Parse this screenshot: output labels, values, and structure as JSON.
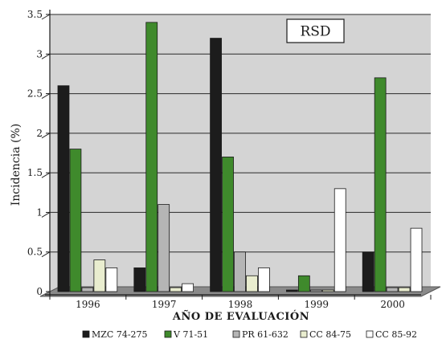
{
  "chart_data": {
    "type": "bar",
    "annotation": "RSD",
    "ylabel": "Incidencia (%)",
    "xlabel": "AÑO DE EVALUACIÓN",
    "ylim": [
      0,
      3.5
    ],
    "ytick_values": [
      0,
      0.5,
      1,
      1.5,
      2,
      2.5,
      3,
      3.5
    ],
    "ytick_labels": [
      "0",
      "0.5",
      "1",
      "1.5",
      "2",
      "2.5",
      "3",
      "3.5"
    ],
    "categories": [
      "1996",
      "1997",
      "1998",
      "1999",
      "2000"
    ],
    "grid": true,
    "legend_position": "bottom",
    "series": [
      {
        "name": "MZC 74-275",
        "color": "#1c1c1c",
        "values": [
          2.6,
          0.3,
          3.2,
          0.02,
          0.5
        ]
      },
      {
        "name": "V 71-51",
        "color": "#3f8a2c",
        "values": [
          1.8,
          3.4,
          1.7,
          0.2,
          2.7
        ]
      },
      {
        "name": "PR 61-632",
        "color": "#b5b5b5",
        "values": [
          0.05,
          1.1,
          0.5,
          0.02,
          0.05
        ]
      },
      {
        "name": "CC 84-75",
        "color": "#e9edcf",
        "values": [
          0.4,
          0.05,
          0.2,
          0.02,
          0.05
        ]
      },
      {
        "name": "CC 85-92",
        "color": "#ffffff",
        "values": [
          0.3,
          0.1,
          0.3,
          1.3,
          0.8
        ]
      }
    ]
  }
}
